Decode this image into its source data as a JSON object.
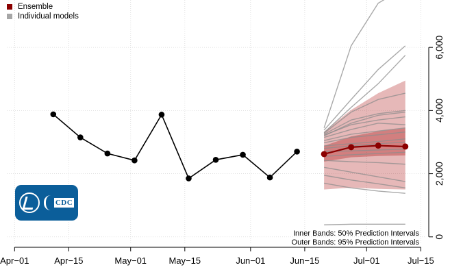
{
  "legend": {
    "ensemble_label": "Ensemble",
    "individual_label": "Individual models",
    "ensemble_color": "#8b0000",
    "individual_color": "#a6a6a6"
  },
  "logo_text": "CDC",
  "notes": {
    "inner": "Inner Bands: 50% Prediction Intervals",
    "outer": "Outer Bands: 95% Prediction Intervals"
  },
  "chart_data": {
    "type": "line",
    "title": "",
    "xlabel": "",
    "ylabel": "",
    "x_ticks": [
      "Apr−01",
      "Apr−15",
      "May−01",
      "May−15",
      "Jun−01",
      "Jun−15",
      "Jul−01",
      "Jul−15"
    ],
    "x_tick_dates": [
      "2020-04-01",
      "2020-04-15",
      "2020-05-01",
      "2020-05-15",
      "2020-06-01",
      "2020-06-15",
      "2020-07-01",
      "2020-07-15"
    ],
    "y_ticks": [
      0,
      2000,
      4000,
      6000
    ],
    "y_tick_labels": [
      "0",
      "2,000",
      "4,000",
      "6,000"
    ],
    "xlim": [
      "2020-03-30",
      "2020-07-16"
    ],
    "ylim": [
      -200,
      7500
    ],
    "y_axis_side": "right",
    "grid": true,
    "observed": {
      "dates": [
        "2020-04-11",
        "2020-04-18",
        "2020-04-25",
        "2020-05-02",
        "2020-05-09",
        "2020-05-16",
        "2020-05-23",
        "2020-05-30",
        "2020-06-06",
        "2020-06-13"
      ],
      "values": [
        3880,
        3150,
        2640,
        2420,
        3870,
        1850,
        2440,
        2600,
        1880,
        2700
      ]
    },
    "ensemble": {
      "dates": [
        "2020-06-20",
        "2020-06-27",
        "2020-07-04",
        "2020-07-11"
      ],
      "median": [
        2620,
        2840,
        2890,
        2860
      ],
      "pi50_lower": [
        2380,
        2520,
        2560,
        2580
      ],
      "pi50_upper": [
        2880,
        3180,
        3340,
        3440
      ],
      "pi95_lower": [
        1500,
        1560,
        1520,
        1500
      ],
      "pi95_upper": [
        3330,
        4020,
        4550,
        4950
      ]
    },
    "individual_models": [
      [
        3450,
        6050,
        7400,
        7900
      ],
      [
        3380,
        4350,
        5300,
        6050
      ],
      [
        3300,
        4100,
        4850,
        5750
      ],
      [
        3280,
        3950,
        4350,
        4550
      ],
      [
        3250,
        3700,
        3900,
        4000
      ],
      [
        3220,
        3550,
        3700,
        3800
      ],
      [
        3200,
        3600,
        3850,
        3950
      ],
      [
        3150,
        3400,
        3600,
        3550
      ],
      [
        3050,
        3250,
        3350,
        3450
      ],
      [
        2980,
        3150,
        3230,
        3320
      ],
      [
        2880,
        2950,
        3020,
        3100
      ],
      [
        2800,
        2880,
        2950,
        3000
      ],
      [
        2700,
        2720,
        2750,
        2780
      ],
      [
        2550,
        2600,
        2640,
        2680
      ],
      [
        2420,
        2380,
        2350,
        2300
      ],
      [
        2200,
        2050,
        1900,
        1750
      ],
      [
        1950,
        1800,
        1680,
        1550
      ],
      [
        1700,
        1550,
        1450,
        1380
      ],
      [
        380,
        400,
        400,
        400
      ]
    ]
  }
}
